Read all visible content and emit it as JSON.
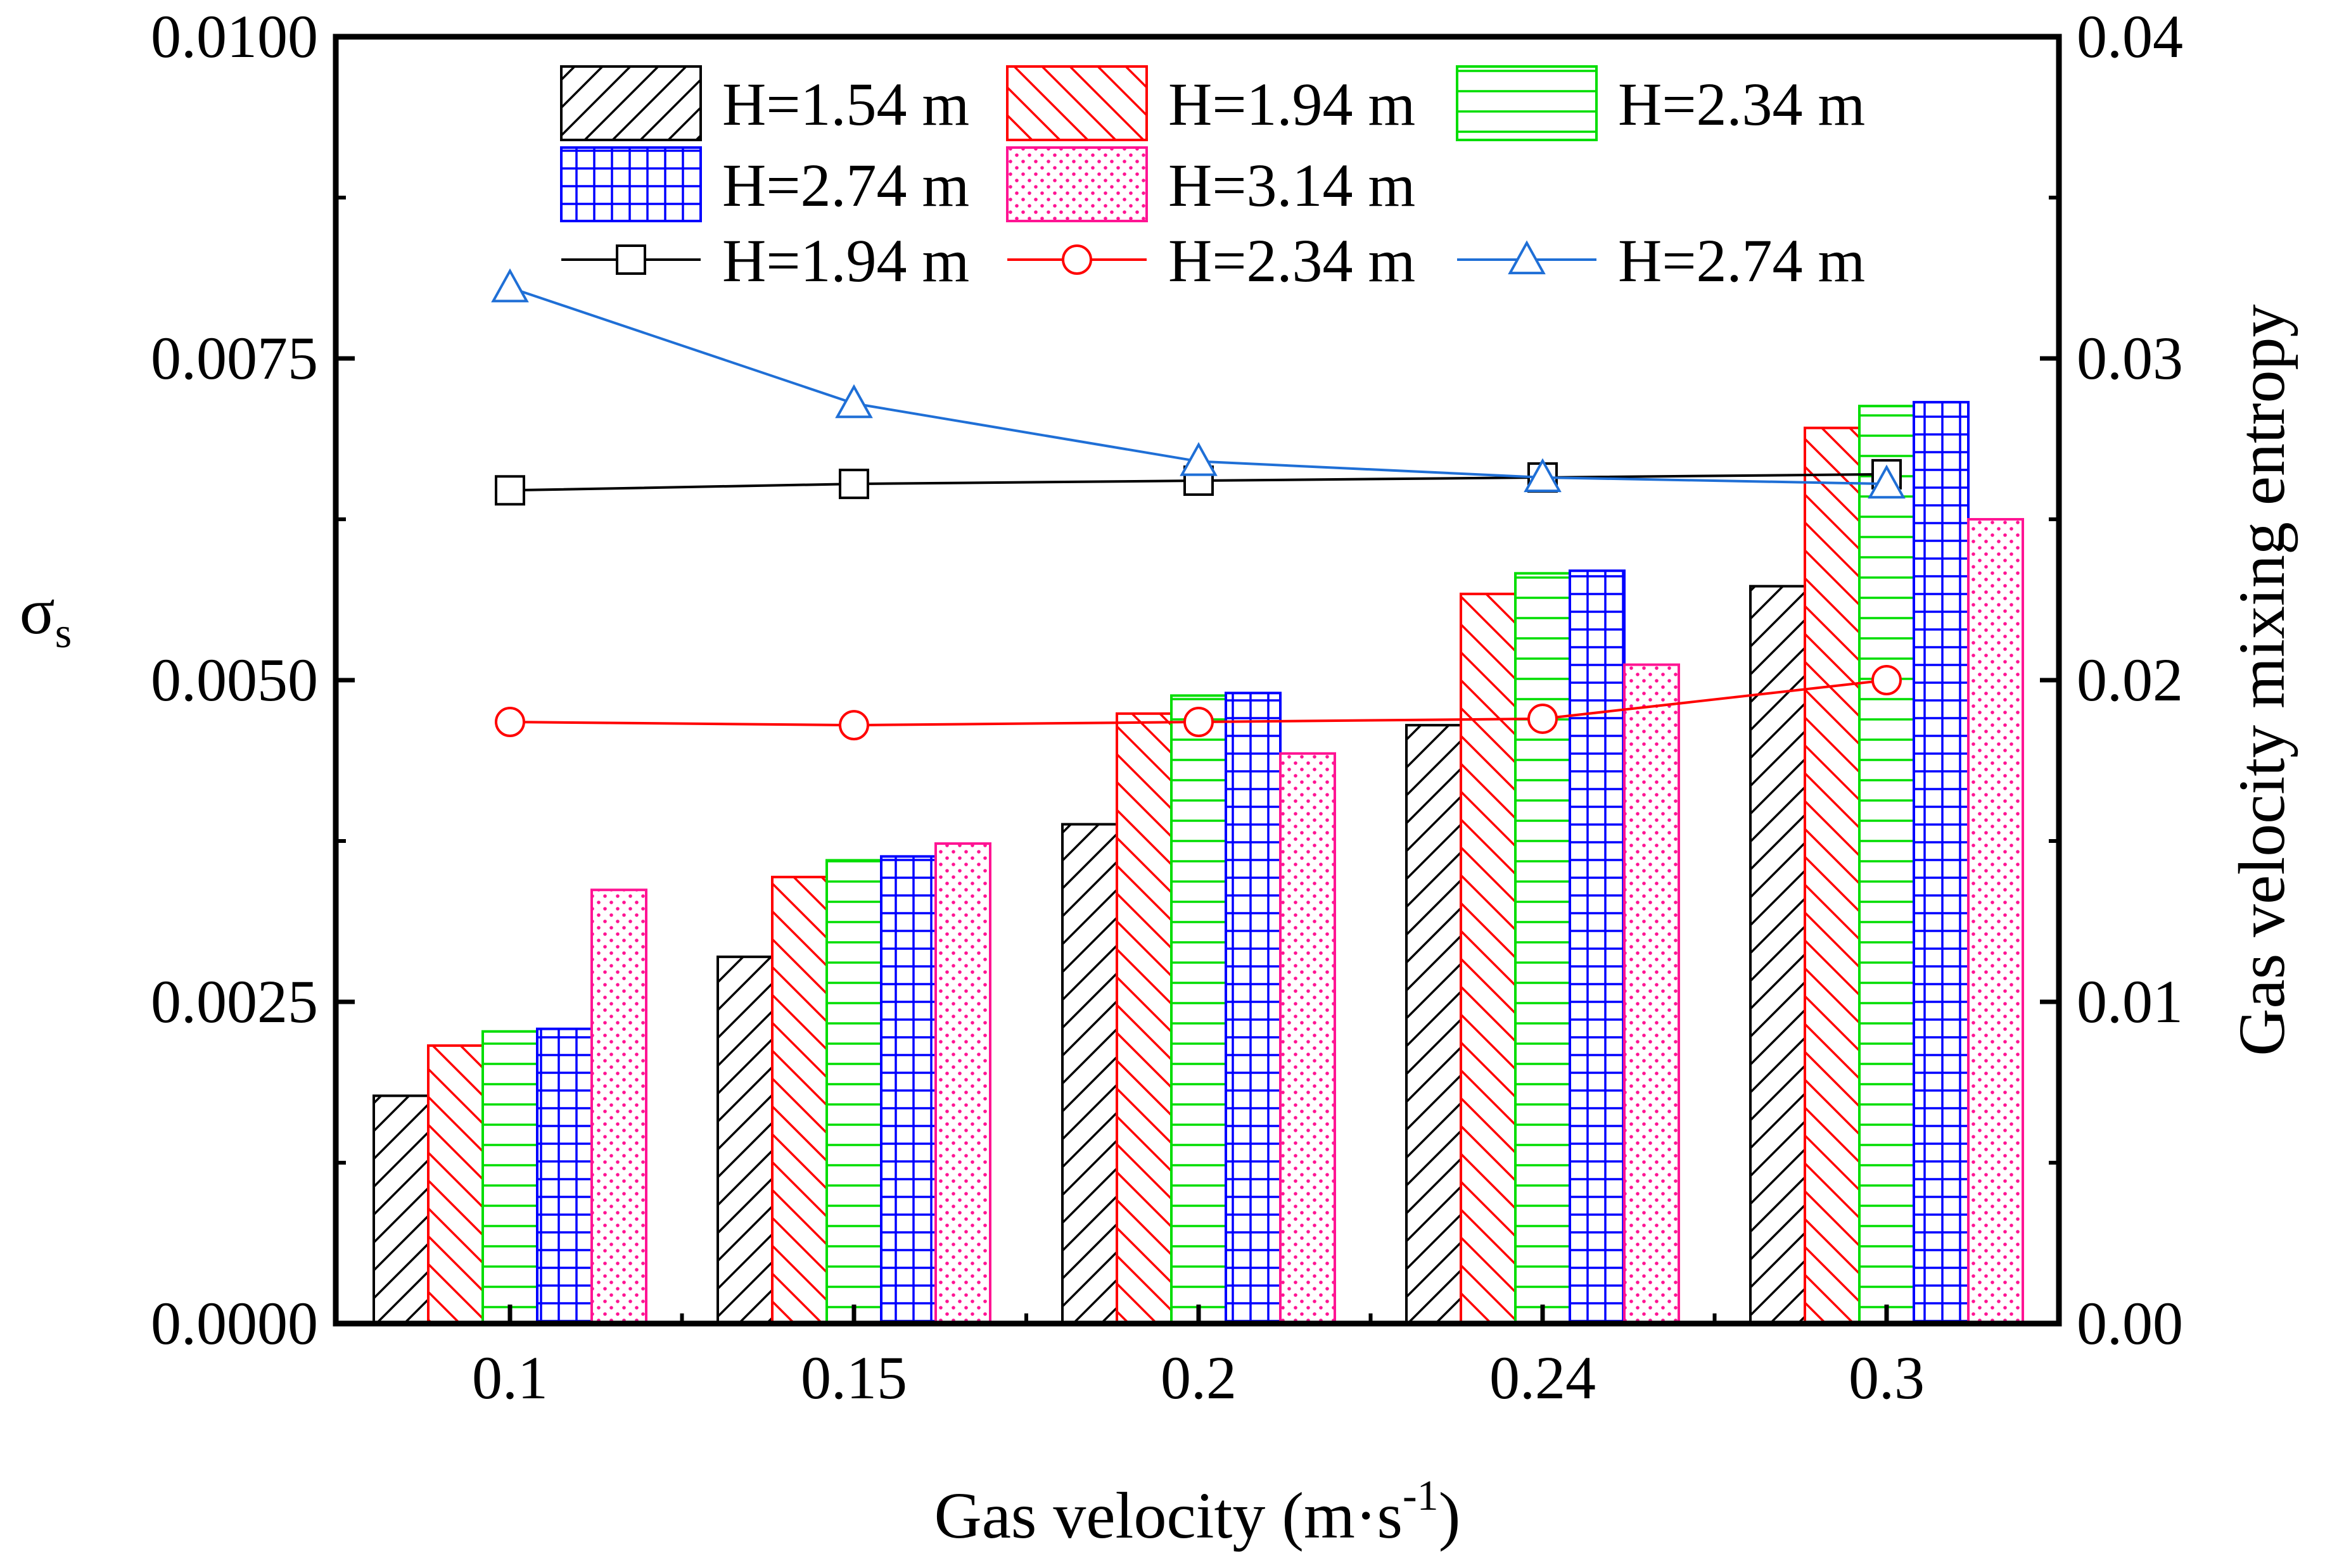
{
  "chart_data": {
    "type": "bar",
    "categories": [
      "0.1",
      "0.15",
      "0.2",
      "0.24",
      "0.3"
    ],
    "xlabel": "Gas velocity (m·s",
    "xlabel_sup": "-1",
    "xlabel_close": ")",
    "ylabel_left": "σ",
    "ylabel_left_sub": "s",
    "ylabel_right": "Gas velocity mixing entropy",
    "ylim_left": [
      0,
      0.01
    ],
    "ylim_right": [
      0,
      0.04
    ],
    "left_ticks": [
      "0.0000",
      "0.0025",
      "0.0050",
      "0.0075",
      "0.0100"
    ],
    "right_ticks": [
      "0.00",
      "0.01",
      "0.02",
      "0.03",
      "0.04"
    ],
    "bar_series": [
      {
        "name": "H=1.54 m",
        "color": "#000000",
        "pattern": "hatch-forward",
        "values": [
          0.00177,
          0.00285,
          0.00388,
          0.00465,
          0.00573
        ]
      },
      {
        "name": "H=1.94 m",
        "color": "#ff0000",
        "pattern": "hatch-back",
        "values": [
          0.00216,
          0.00347,
          0.00474,
          0.00567,
          0.00696
        ]
      },
      {
        "name": "H=2.34 m",
        "color": "#00dd00",
        "pattern": "horizontal",
        "values": [
          0.00227,
          0.0036,
          0.00488,
          0.00583,
          0.00713
        ]
      },
      {
        "name": "H=2.74 m",
        "color": "#0000ff",
        "pattern": "grid",
        "values": [
          0.00229,
          0.00363,
          0.0049,
          0.00585,
          0.00716
        ]
      },
      {
        "name": "H=3.14 m",
        "color": "#ff1493",
        "pattern": "dots",
        "values": [
          0.00337,
          0.00373,
          0.00443,
          0.00512,
          0.00625
        ]
      }
    ],
    "line_series": [
      {
        "name": "H=1.94 m",
        "color": "#000000",
        "marker": "square",
        "values": [
          0.0259,
          0.0261,
          0.0262,
          0.0263,
          0.0264
        ]
      },
      {
        "name": "H=2.34 m",
        "color": "#ff0000",
        "marker": "circle",
        "values": [
          0.0187,
          0.0186,
          0.0187,
          0.0188,
          0.02
        ]
      },
      {
        "name": "H=2.74 m",
        "color": "#1f6fd6",
        "marker": "triangle",
        "values": [
          0.0322,
          0.0286,
          0.0268,
          0.0263,
          0.0261
        ]
      }
    ],
    "legend_position": "top"
  }
}
